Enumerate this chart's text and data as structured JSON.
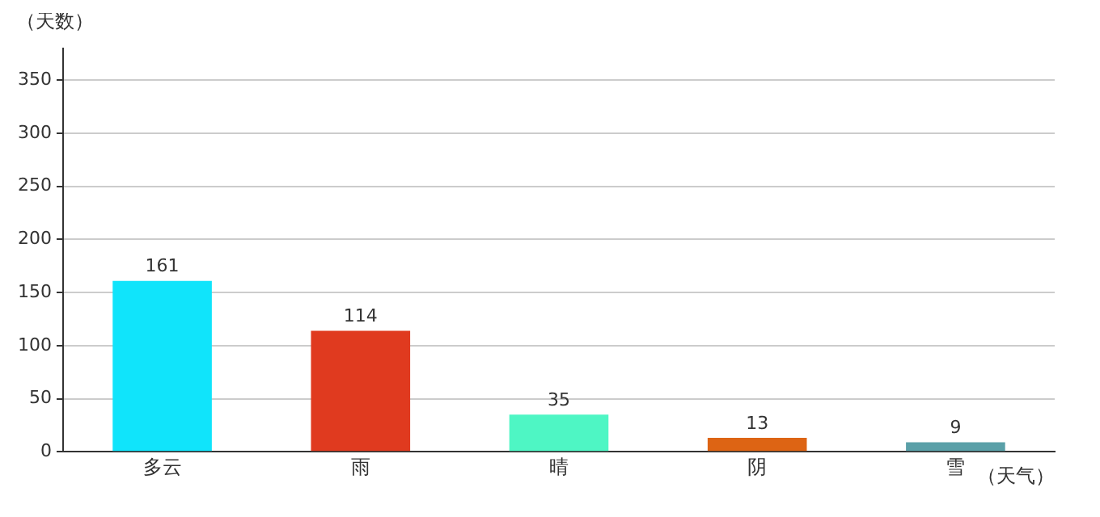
{
  "chart_data": {
    "type": "bar",
    "xlabel": "（天气）",
    "ylabel": "（天数）",
    "categories": [
      "多云",
      "雨",
      "晴",
      "阴",
      "雪"
    ],
    "values": [
      161,
      114,
      35,
      13,
      9
    ],
    "colors": [
      "#10e4fb",
      "#e03a1f",
      "#4ef6c4",
      "#dd6414",
      "#5aa0a8"
    ],
    "ylim": [
      0,
      380
    ],
    "yticks": [
      0,
      50,
      100,
      150,
      200,
      250,
      300,
      350
    ],
    "grid": "y",
    "data_labels": true
  }
}
